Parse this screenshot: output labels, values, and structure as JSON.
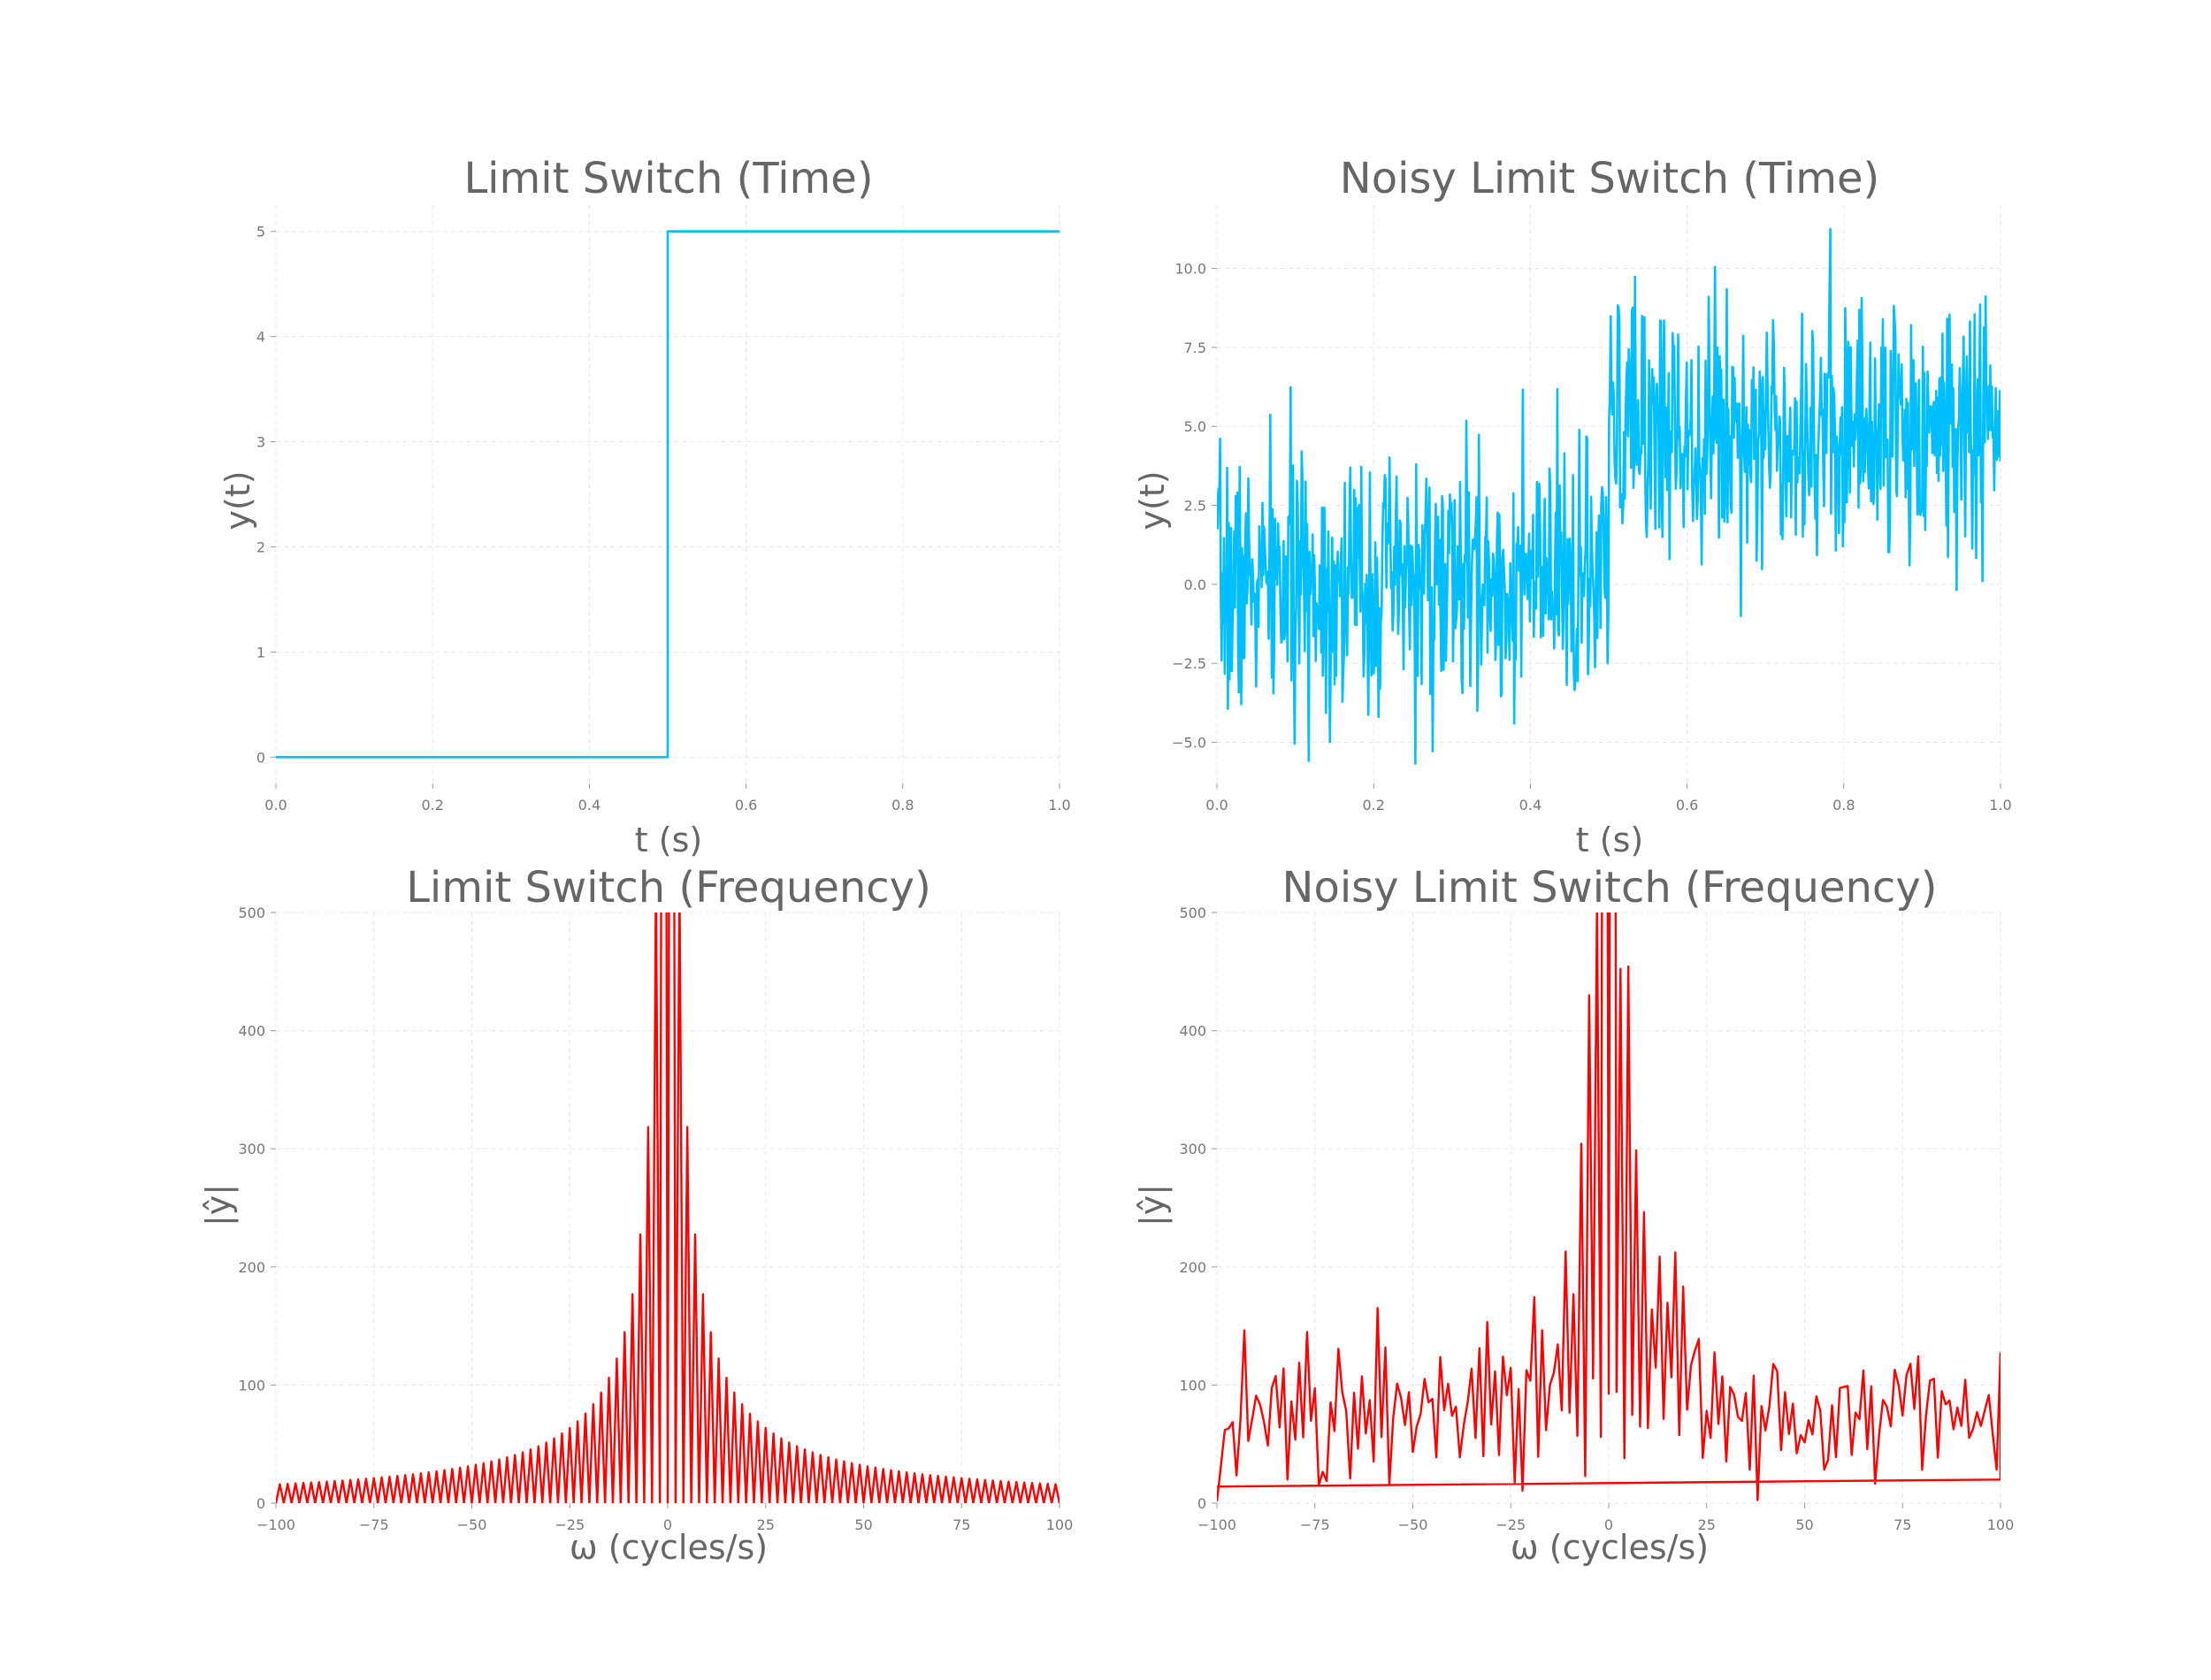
{
  "chart_data": [
    {
      "id": "tl",
      "type": "line",
      "title": "Limit Switch  (Time)",
      "xlabel": "t (s)",
      "ylabel": "y(t)",
      "xlim": [
        0,
        1
      ],
      "ylim": [
        -0.25,
        5.25
      ],
      "xticks": [
        0,
        0.2,
        0.4,
        0.6,
        0.8,
        1.0
      ],
      "xtick_labels": [
        "0.0",
        "0.2",
        "0.4",
        "0.6",
        "0.8",
        "1.0"
      ],
      "yticks": [
        0,
        1,
        2,
        3,
        4,
        5
      ],
      "ytick_labels": [
        "0",
        "1",
        "2",
        "3",
        "4",
        "5"
      ],
      "grid": true,
      "color": "#00bfff",
      "series": [
        {
          "x": [
            0,
            0.5,
            0.5,
            1.0
          ],
          "y": [
            0,
            0,
            5,
            5
          ]
        }
      ]
    },
    {
      "id": "tr",
      "type": "line",
      "title": "Noisy Limit Switch (Time)",
      "xlabel": "t (s)",
      "ylabel": "y(t)",
      "xlim": [
        0,
        1
      ],
      "ylim": [
        -6.3,
        12.0
      ],
      "xticks": [
        0,
        0.2,
        0.4,
        0.6,
        0.8,
        1.0
      ],
      "xtick_labels": [
        "0.0",
        "0.2",
        "0.4",
        "0.6",
        "0.8",
        "1.0"
      ],
      "yticks": [
        -5,
        -2.5,
        0,
        2.5,
        5,
        7.5,
        10
      ],
      "ytick_labels": [
        "−5.0",
        "−2.5",
        "0.0",
        "2.5",
        "5.0",
        "7.5",
        "10.0"
      ],
      "grid": true,
      "color": "#00bfff",
      "series": [
        {
          "x_start": 0,
          "x_end": 1,
          "step": 0.5,
          "level_before": 0,
          "level_after": 5,
          "noise_sd": 2,
          "samples": 1000
        }
      ]
    },
    {
      "id": "bl",
      "type": "line",
      "title": "Limit Switch (Frequency)",
      "xlabel": "ω (cycles/s)",
      "ylabel": "|ŷ|",
      "xlim": [
        -100,
        100
      ],
      "ylim": [
        0,
        500
      ],
      "xticks": [
        -100,
        -75,
        -50,
        -25,
        0,
        25,
        50,
        75,
        100
      ],
      "xtick_labels": [
        "−100",
        "−75",
        "−50",
        "−25",
        "0",
        "25",
        "50",
        "75",
        "100"
      ],
      "yticks": [
        0,
        100,
        200,
        300,
        400,
        500
      ],
      "ytick_labels": [
        "0",
        "100",
        "200",
        "300",
        "400",
        "500"
      ],
      "grid": true,
      "color": "#ff0000",
      "series": [
        {
          "freq_min": -100,
          "freq_max": 100,
          "magnitude_at_odd_k": "5000/(pi*|k|)",
          "magnitude_at_even_k": 0
        }
      ]
    },
    {
      "id": "br",
      "type": "line",
      "title": "Noisy Limit Switch (Frequency)",
      "xlabel": "ω (cycles/s)",
      "ylabel": "|ŷ|",
      "xlim": [
        -100,
        100
      ],
      "ylim": [
        0,
        500
      ],
      "xticks": [
        -100,
        -75,
        -50,
        -25,
        0,
        25,
        50,
        75,
        100
      ],
      "xtick_labels": [
        "−100",
        "−75",
        "−50",
        "−25",
        "0",
        "25",
        "50",
        "75",
        "100"
      ],
      "yticks": [
        0,
        100,
        200,
        300,
        400,
        500
      ],
      "ytick_labels": [
        "0",
        "100",
        "200",
        "300",
        "400",
        "500"
      ],
      "grid": true,
      "color": "#ff0000",
      "series": [
        {
          "freq_min": -100,
          "freq_max": 100,
          "noise_floor_mean": 60,
          "noise_floor_sd": 30,
          "dc_wrap_from": 14,
          "dc_wrap_to": 20
        }
      ]
    }
  ]
}
